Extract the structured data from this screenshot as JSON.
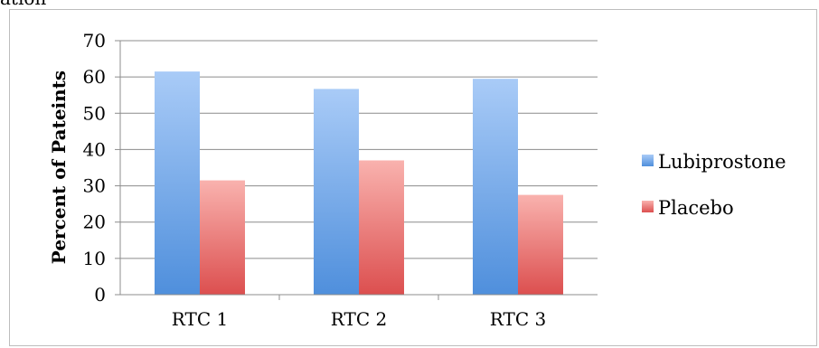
{
  "header": {
    "cut_title": "ation"
  },
  "chart_data": {
    "type": "bar",
    "title": "",
    "xlabel": "",
    "ylabel": "Percent of Pateints",
    "ylim": [
      0,
      70
    ],
    "yticks": [
      0,
      10,
      20,
      30,
      40,
      50,
      60,
      70
    ],
    "categories": [
      "RTC 1",
      "RTC 2",
      "RTC 3"
    ],
    "series": [
      {
        "name": "Lubiprostone",
        "values": [
          61.5,
          56.7,
          59.5
        ],
        "color": "#4f8fdc",
        "color_light": "#a9cbf7"
      },
      {
        "name": "Placebo",
        "values": [
          31.5,
          37.0,
          27.5
        ],
        "color": "#dc4f4f",
        "color_light": "#f9b2ae"
      }
    ],
    "grid": true,
    "legend_position": "right"
  }
}
